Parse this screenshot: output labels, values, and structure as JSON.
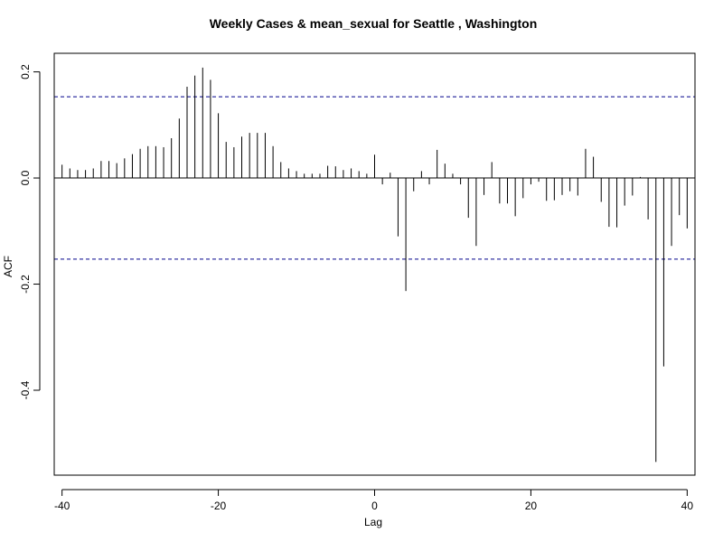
{
  "chart_data": {
    "type": "bar",
    "subtype": "acf-lag-spikes",
    "title": "Weekly Cases & mean_sexual for Seattle , Washington",
    "xlabel": "Lag",
    "ylabel": "ACF",
    "xlim": [
      -41,
      41
    ],
    "ylim": [
      -0.56,
      0.235
    ],
    "xticks": [
      -40,
      -20,
      0,
      20,
      40
    ],
    "yticks": [
      -0.4,
      -0.2,
      0.0,
      0.2
    ],
    "ytick_labels": [
      "-0.4",
      "-0.2",
      "0.0",
      "0.2"
    ],
    "grid": false,
    "zero_line": true,
    "confidence_band": 0.153,
    "colors": {
      "spike": "#000000",
      "band": "#00008b",
      "axis": "#000000"
    },
    "lags": [
      -40,
      -39,
      -38,
      -37,
      -36,
      -35,
      -34,
      -33,
      -32,
      -31,
      -30,
      -29,
      -28,
      -27,
      -26,
      -25,
      -24,
      -23,
      -22,
      -21,
      -20,
      -19,
      -18,
      -17,
      -16,
      -15,
      -14,
      -13,
      -12,
      -11,
      -10,
      -9,
      -8,
      -7,
      -6,
      -5,
      -4,
      -3,
      -2,
      -1,
      0,
      1,
      2,
      3,
      4,
      5,
      6,
      7,
      8,
      9,
      10,
      11,
      12,
      13,
      14,
      15,
      16,
      17,
      18,
      19,
      20,
      21,
      22,
      23,
      24,
      25,
      26,
      27,
      28,
      29,
      30,
      31,
      32,
      33,
      34,
      35,
      36,
      37,
      38,
      39,
      40
    ],
    "values": [
      0.025,
      0.018,
      0.015,
      0.015,
      0.018,
      0.032,
      0.032,
      0.028,
      0.037,
      0.045,
      0.055,
      0.06,
      0.06,
      0.058,
      0.075,
      0.112,
      0.172,
      0.193,
      0.208,
      0.185,
      0.122,
      0.068,
      0.058,
      0.078,
      0.085,
      0.085,
      0.085,
      0.06,
      0.03,
      0.018,
      0.013,
      0.008,
      0.008,
      0.008,
      0.023,
      0.022,
      0.015,
      0.018,
      0.013,
      0.008,
      0.044,
      -0.012,
      0.01,
      -0.11,
      -0.213,
      -0.025,
      0.013,
      -0.012,
      0.053,
      0.027,
      0.008,
      -0.012,
      -0.075,
      -0.128,
      -0.032,
      0.03,
      -0.048,
      -0.048,
      -0.072,
      -0.038,
      -0.012,
      -0.007,
      -0.043,
      -0.042,
      -0.032,
      -0.025,
      -0.033,
      0.055,
      0.04,
      -0.045,
      -0.092,
      -0.093,
      -0.052,
      -0.033,
      0.002,
      -0.078,
      -0.535,
      -0.355,
      -0.128,
      -0.07,
      -0.095
    ]
  }
}
